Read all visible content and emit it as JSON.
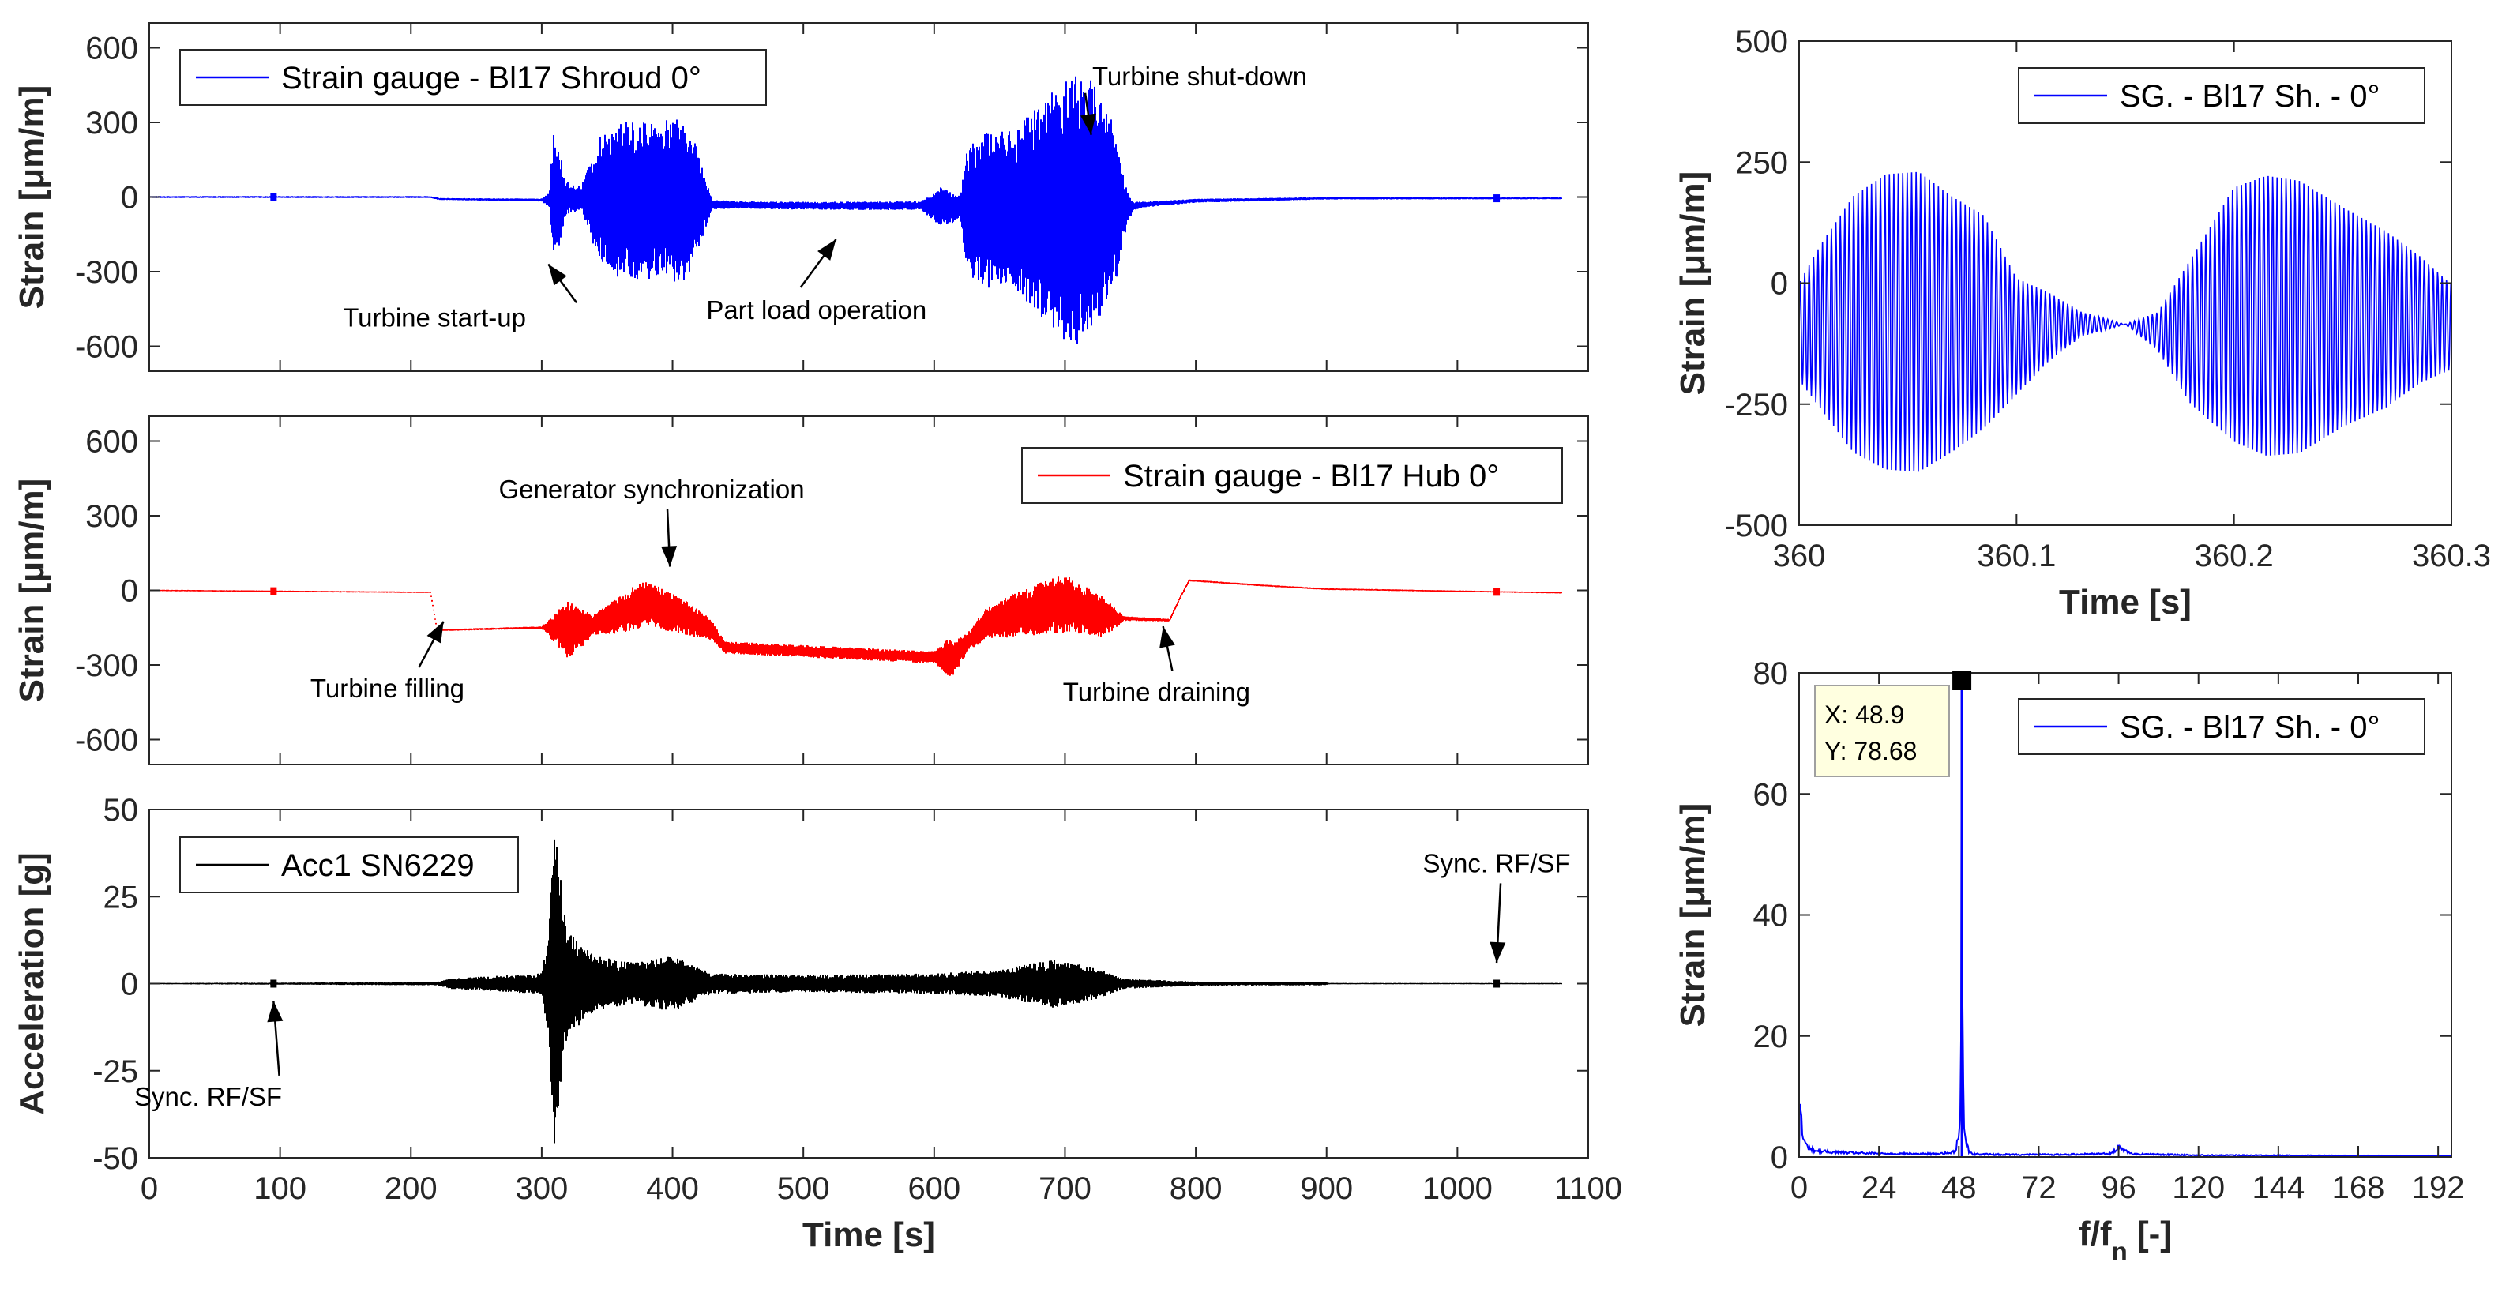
{
  "chart_data": [
    {
      "id": "p1",
      "type": "line",
      "title": "",
      "xlabel": "",
      "ylabel": "Strain [μm/m]",
      "xlim": [
        0,
        1100
      ],
      "ylim": [
        -700,
        700
      ],
      "xticks": [
        0,
        100,
        200,
        300,
        400,
        500,
        600,
        700,
        800,
        900,
        1000,
        1100
      ],
      "xtick_labels": [],
      "yticks": [
        -600,
        -300,
        0,
        300,
        600
      ],
      "ytick_labels": [
        "-600",
        "-300",
        "0",
        "300",
        "600"
      ],
      "grid": false,
      "legend": {
        "position": "top-left",
        "entries": [
          "Strain gauge - Bl17 Shroud 0°"
        ]
      },
      "series": [
        {
          "name": "Strain gauge - Bl17 Shroud 0°",
          "color": "#0000ff",
          "mean": [
            [
              0,
              0
            ],
            [
              215,
              0
            ],
            [
              222,
              -8
            ],
            [
              300,
              -12
            ],
            [
              306,
              -10
            ],
            [
              320,
              -5
            ],
            [
              350,
              -15
            ],
            [
              420,
              -15
            ],
            [
              430,
              -30
            ],
            [
              500,
              -35
            ],
            [
              590,
              -35
            ],
            [
              615,
              -45
            ],
            [
              650,
              -50
            ],
            [
              740,
              -50
            ],
            [
              760,
              -30
            ],
            [
              800,
              -15
            ],
            [
              900,
              -5
            ],
            [
              1080,
              -5
            ]
          ],
          "envelope": [
            [
              0,
              4
            ],
            [
              215,
              4
            ],
            [
              222,
              4
            ],
            [
              300,
              6
            ],
            [
              306,
              30
            ],
            [
              309,
              290
            ],
            [
              313,
              220
            ],
            [
              318,
              70
            ],
            [
              330,
              50
            ],
            [
              345,
              260
            ],
            [
              355,
              320
            ],
            [
              370,
              320
            ],
            [
              395,
              330
            ],
            [
              410,
              325
            ],
            [
              420,
              200
            ],
            [
              430,
              20
            ],
            [
              450,
              15
            ],
            [
              590,
              18
            ],
            [
              605,
              80
            ],
            [
              620,
              50
            ],
            [
              625,
              260
            ],
            [
              640,
              320
            ],
            [
              660,
              320
            ],
            [
              680,
              420
            ],
            [
              695,
              520
            ],
            [
              705,
              560
            ],
            [
              720,
              520
            ],
            [
              735,
              400
            ],
            [
              745,
              120
            ],
            [
              752,
              20
            ],
            [
              760,
              12
            ],
            [
              800,
              8
            ],
            [
              900,
              5
            ],
            [
              1080,
              4
            ]
          ]
        }
      ],
      "annotations": [
        {
          "text": "Turbine start-up",
          "xy": [
            305,
            -270
          ],
          "text_xy": [
            218,
            -520
          ]
        },
        {
          "text": "Part load operation",
          "xy": [
            525,
            -170
          ],
          "text_xy": [
            510,
            -490
          ]
        },
        {
          "text": "Turbine shut-down",
          "xy": [
            720,
            250
          ],
          "text_xy": [
            803,
            450
          ]
        }
      ]
    },
    {
      "id": "p2",
      "type": "line",
      "title": "",
      "xlabel": "",
      "ylabel": "Strain [μm/m]",
      "xlim": [
        0,
        1100
      ],
      "ylim": [
        -700,
        700
      ],
      "xticks": [
        0,
        100,
        200,
        300,
        400,
        500,
        600,
        700,
        800,
        900,
        1000,
        1100
      ],
      "xtick_labels": [],
      "yticks": [
        -600,
        -300,
        0,
        300,
        600
      ],
      "ytick_labels": [
        "-600",
        "-300",
        "0",
        "300",
        "600"
      ],
      "grid": false,
      "legend": {
        "position": "top-right",
        "entries": [
          "Strain gauge - Bl17 Hub 0°"
        ]
      },
      "series": [
        {
          "name": "Strain gauge - Bl17 Hub 0°",
          "color": "#ff0000",
          "mean": [
            [
              0,
              0
            ],
            [
              215,
              -8
            ],
            [
              220,
              -160
            ],
            [
              300,
              -150
            ],
            [
              330,
              -155
            ],
            [
              350,
              -120
            ],
            [
              380,
              -50
            ],
            [
              410,
              -110
            ],
            [
              430,
              -160
            ],
            [
              440,
              -230
            ],
            [
              600,
              -270
            ],
            [
              615,
              -270
            ],
            [
              640,
              -130
            ],
            [
              700,
              -50
            ],
            [
              730,
              -110
            ],
            [
              780,
              -120
            ],
            [
              788,
              -30
            ],
            [
              795,
              40
            ],
            [
              850,
              20
            ],
            [
              900,
              5
            ],
            [
              1080,
              -10
            ]
          ],
          "envelope": [
            [
              0,
              3
            ],
            [
              215,
              3
            ],
            [
              222,
              4
            ],
            [
              300,
              5
            ],
            [
              312,
              70
            ],
            [
              320,
              120
            ],
            [
              340,
              40
            ],
            [
              350,
              60
            ],
            [
              370,
              90
            ],
            [
              400,
              80
            ],
            [
              420,
              60
            ],
            [
              430,
              40
            ],
            [
              440,
              25
            ],
            [
              600,
              25
            ],
            [
              612,
              80
            ],
            [
              625,
              40
            ],
            [
              660,
              90
            ],
            [
              700,
              120
            ],
            [
              730,
              80
            ],
            [
              745,
              10
            ],
            [
              790,
              4
            ],
            [
              1080,
              3
            ]
          ]
        }
      ],
      "annotations": [
        {
          "text": "Generator synchronization",
          "xy": [
            398,
            95
          ],
          "text_xy": [
            384,
            370
          ]
        },
        {
          "text": "Turbine filling",
          "xy": [
            225,
            -125
          ],
          "text_xy": [
            182,
            -430
          ]
        },
        {
          "text": "Turbine draining",
          "xy": [
            775,
            -145
          ],
          "text_xy": [
            770,
            -445
          ]
        }
      ]
    },
    {
      "id": "p3",
      "type": "line",
      "title": "",
      "xlabel": "Time [s]",
      "ylabel": "Acceleration [g]",
      "xlim": [
        0,
        1100
      ],
      "ylim": [
        -50,
        50
      ],
      "xticks": [
        0,
        100,
        200,
        300,
        400,
        500,
        600,
        700,
        800,
        900,
        1000,
        1100
      ],
      "xtick_labels": [
        "0",
        "100",
        "200",
        "300",
        "400",
        "500",
        "600",
        "700",
        "800",
        "900",
        "1000",
        "1100"
      ],
      "yticks": [
        -50,
        -25,
        0,
        25,
        50
      ],
      "ytick_labels": [
        "-50",
        "-25",
        "0",
        "25",
        "50"
      ],
      "grid": false,
      "legend": {
        "position": "top-left",
        "entries": [
          "Acc1 SN6229"
        ]
      },
      "series": [
        {
          "name": "Acc1 SN6229",
          "color": "#000000",
          "mean": [
            [
              0,
              0
            ],
            [
              1080,
              0
            ]
          ],
          "envelope": [
            [
              0,
              0.2
            ],
            [
              100,
              0.3
            ],
            [
              220,
              0.5
            ],
            [
              230,
              1.5
            ],
            [
              300,
              3
            ],
            [
              305,
              15
            ],
            [
              308,
              40
            ],
            [
              310,
              50
            ],
            [
              313,
              35
            ],
            [
              320,
              15
            ],
            [
              340,
              8
            ],
            [
              370,
              6
            ],
            [
              400,
              8
            ],
            [
              430,
              3
            ],
            [
              500,
              2.5
            ],
            [
              600,
              3
            ],
            [
              650,
              4
            ],
            [
              690,
              7
            ],
            [
              720,
              5
            ],
            [
              745,
              1.5
            ],
            [
              800,
              0.6
            ],
            [
              900,
              0.5
            ],
            [
              902,
              0.2
            ],
            [
              1080,
              0.2
            ]
          ]
        }
      ],
      "annotations": [
        {
          "text": "Sync. RF/SF",
          "xy": [
            95,
            -5
          ],
          "text_xy": [
            45,
            -35
          ]
        },
        {
          "text": "Sync. RF/SF",
          "xy": [
            1030,
            6
          ],
          "text_xy": [
            1030,
            32
          ]
        }
      ]
    },
    {
      "id": "p4",
      "type": "line",
      "title": "",
      "xlabel": "Time [s]",
      "ylabel": "Strain [μm/m]",
      "xlim": [
        360,
        360.3
      ],
      "ylim": [
        -500,
        500
      ],
      "xticks": [
        360,
        360.1,
        360.2,
        360.3
      ],
      "xtick_labels": [
        "360",
        "360.1",
        "360.2",
        "360.3"
      ],
      "yticks": [
        -500,
        -250,
        0,
        250,
        500
      ],
      "ytick_labels": [
        "-500",
        "-250",
        "0",
        "250",
        "500"
      ],
      "grid": false,
      "legend": {
        "position": "top-right",
        "entries": [
          "SG. - Bl17 Sh. - 0°"
        ]
      },
      "series": [
        {
          "name": "SG. - Bl17 Sh. - 0°",
          "color": "#0000ff",
          "oscillation_period_s": 0.00205,
          "upper": [
            [
              360,
              0
            ],
            [
              360.01,
              80
            ],
            [
              360.025,
              180
            ],
            [
              360.04,
              225
            ],
            [
              360.055,
              230
            ],
            [
              360.07,
              180
            ],
            [
              360.085,
              140
            ],
            [
              360.1,
              10
            ],
            [
              360.115,
              -20
            ],
            [
              360.13,
              -60
            ],
            [
              360.15,
              -85
            ],
            [
              360.165,
              -60
            ],
            [
              360.18,
              50
            ],
            [
              360.2,
              200
            ],
            [
              360.215,
              225
            ],
            [
              360.23,
              215
            ],
            [
              360.25,
              160
            ],
            [
              360.27,
              110
            ],
            [
              360.285,
              60
            ],
            [
              360.3,
              0
            ]
          ],
          "lower": [
            [
              360,
              -200
            ],
            [
              360.01,
              -260
            ],
            [
              360.025,
              -350
            ],
            [
              360.04,
              -385
            ],
            [
              360.055,
              -390
            ],
            [
              360.07,
              -350
            ],
            [
              360.085,
              -300
            ],
            [
              360.1,
              -230
            ],
            [
              360.115,
              -160
            ],
            [
              360.13,
              -110
            ],
            [
              360.15,
              -85
            ],
            [
              360.165,
              -140
            ],
            [
              360.18,
              -250
            ],
            [
              360.2,
              -330
            ],
            [
              360.215,
              -360
            ],
            [
              360.23,
              -355
            ],
            [
              360.25,
              -300
            ],
            [
              360.27,
              -260
            ],
            [
              360.285,
              -210
            ],
            [
              360.3,
              -180
            ]
          ]
        }
      ],
      "annotations": []
    },
    {
      "id": "p5",
      "type": "line",
      "title": "",
      "xlabel": "f/fₙ [-]",
      "ylabel": "Strain [μm/m]",
      "xlim": [
        0,
        196
      ],
      "ylim": [
        0,
        80
      ],
      "xticks": [
        0,
        24,
        48,
        72,
        96,
        120,
        144,
        168,
        192
      ],
      "xtick_labels": [
        "0",
        "24",
        "48",
        "72",
        "96",
        "120",
        "144",
        "168",
        "192"
      ],
      "yticks": [
        0,
        20,
        40,
        60,
        80
      ],
      "ytick_labels": [
        "0",
        "20",
        "40",
        "60",
        "80"
      ],
      "grid": false,
      "legend": {
        "position": "top-right",
        "entries": [
          "SG. - Bl17 Sh. - 0°"
        ]
      },
      "series": [
        {
          "name": "SG. - Bl17 Sh. - 0°",
          "color": "#0000ff",
          "x": [
            0,
            0.2,
            0.5,
            1,
            2,
            3,
            5,
            10,
            20,
            40,
            46,
            47,
            47.6,
            48,
            48.4,
            48.7,
            48.9,
            49.1,
            49.4,
            49.8,
            50.2,
            51,
            52,
            60,
            80,
            94,
            95.5,
            96.5,
            97.8,
            100,
            120,
            150,
            180,
            196
          ],
          "y": [
            0.5,
            9.5,
            8,
            3.5,
            2,
            1.5,
            1,
            0.8,
            0.6,
            0.5,
            0.7,
            1.2,
            2.5,
            4.5,
            8,
            30,
            78.68,
            30,
            8,
            4,
            2.5,
            1,
            0.5,
            0.4,
            0.4,
            0.6,
            1.4,
            1.8,
            1.2,
            0.5,
            0.3,
            0.25,
            0.2,
            0.2
          ]
        }
      ],
      "datatip": {
        "x": 48.9,
        "y": 78.68,
        "x_label": "X: 48.9",
        "y_label": "Y: 78.68"
      },
      "annotations": []
    }
  ]
}
